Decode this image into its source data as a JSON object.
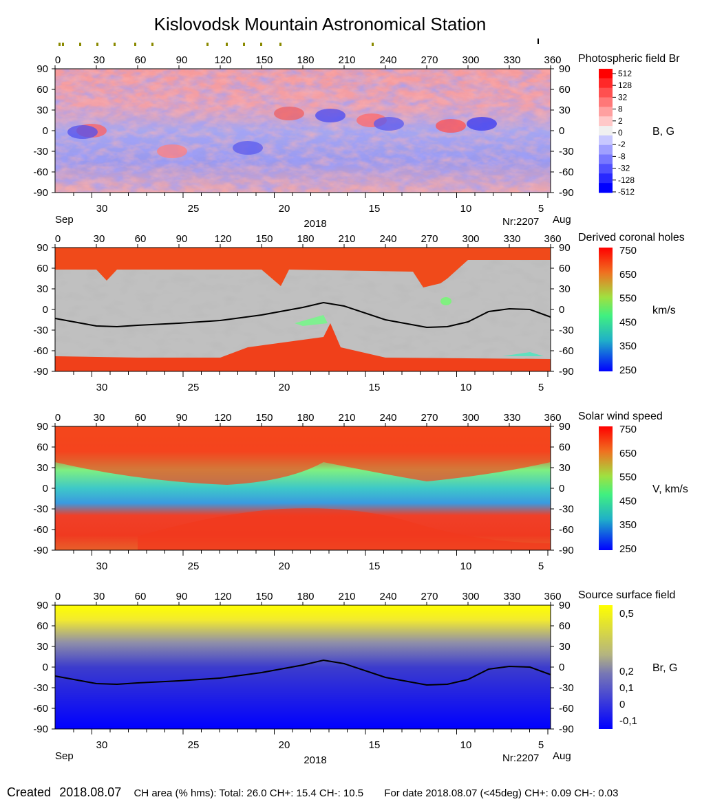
{
  "title": "Kislovodsk Mountain Astronomical Station",
  "footer": {
    "created_label": "Created",
    "created_date": "2018.08.07",
    "ch_area": "CH area (% hms): Total: 26.0 CH+: 15.4   CH-: 10.5",
    "for_date": "For date 2018.08.07 (<45deg) CH+: 0.09    CH-: 0.03"
  },
  "colors": {
    "red": "#ff2a1a",
    "blue": "#0000ff",
    "yellow": "#ffff00",
    "grey_light": "#c0c0c0",
    "grey_dark": "#808080"
  },
  "chart_data": [
    {
      "type": "heatmap",
      "title": "Photospheric field Br",
      "unit_label": "B, G",
      "x_ticks": [
        0,
        30,
        60,
        90,
        120,
        150,
        180,
        210,
        240,
        270,
        300,
        330,
        360
      ],
      "ylim": [
        -90,
        90
      ],
      "y_ticks": [
        90,
        60,
        30,
        0,
        -30,
        -60,
        -90
      ],
      "date_ticks": [
        "30",
        "25",
        "20",
        "15",
        "10",
        "5"
      ],
      "month_left": "Sep",
      "month_right": "Aug",
      "year": "2018",
      "rotation": "Nr:2207",
      "colorbar_labels": [
        "512",
        "128",
        "32",
        "8",
        "2",
        "0",
        "-2",
        "-8",
        "-32",
        "-128",
        "-512"
      ]
    },
    {
      "type": "heatmap",
      "title": "Derived coronal holes",
      "unit_label": "km/s",
      "x_ticks": [
        0,
        30,
        60,
        90,
        120,
        150,
        180,
        210,
        240,
        270,
        300,
        330,
        360
      ],
      "ylim": [
        -90,
        90
      ],
      "y_ticks": [
        90,
        60,
        30,
        0,
        -30,
        -60,
        -90
      ],
      "date_ticks": [
        "30",
        "25",
        "20",
        "15",
        "10",
        "5"
      ],
      "colorbar_labels": [
        "750",
        "650",
        "550",
        "450",
        "350",
        "250"
      ],
      "neutral_line": [
        [
          0,
          -13
        ],
        [
          30,
          -24
        ],
        [
          45,
          -25
        ],
        [
          60,
          -23
        ],
        [
          90,
          -20
        ],
        [
          120,
          -16
        ],
        [
          150,
          -8
        ],
        [
          180,
          3
        ],
        [
          195,
          10
        ],
        [
          210,
          5
        ],
        [
          240,
          -15
        ],
        [
          270,
          -26
        ],
        [
          285,
          -25
        ],
        [
          300,
          -18
        ],
        [
          315,
          -3
        ],
        [
          330,
          1
        ],
        [
          345,
          0
        ],
        [
          360,
          -11
        ]
      ]
    },
    {
      "type": "heatmap",
      "title": "Solar wind speed",
      "unit_label": "V, km/s",
      "x_ticks": [
        0,
        30,
        60,
        90,
        120,
        150,
        180,
        210,
        240,
        270,
        300,
        330,
        360
      ],
      "ylim": [
        -90,
        90
      ],
      "y_ticks": [
        90,
        60,
        30,
        0,
        -30,
        -60,
        -90
      ],
      "date_ticks": [
        "30",
        "25",
        "20",
        "15",
        "10",
        "5"
      ],
      "colorbar_labels": [
        "750",
        "650",
        "550",
        "450",
        "350",
        "250"
      ]
    },
    {
      "type": "heatmap",
      "title": "Source surface field",
      "unit_label": "Br, G",
      "x_ticks": [
        0,
        30,
        60,
        90,
        120,
        150,
        180,
        210,
        240,
        270,
        300,
        330,
        360
      ],
      "ylim": [
        -90,
        90
      ],
      "y_ticks": [
        90,
        60,
        30,
        0,
        -30,
        -60,
        -90
      ],
      "date_ticks": [
        "30",
        "25",
        "20",
        "15",
        "10",
        "5"
      ],
      "month_left": "Sep",
      "month_right": "Aug",
      "year": "2018",
      "rotation": "Nr:2207",
      "colorbar_labels": [
        "0,5",
        "0,2",
        "0,1",
        "0",
        "-0,1"
      ],
      "colorbar_label_levels": [
        0.55,
        0.2,
        0.1,
        0,
        -0.1
      ],
      "colorbar_range": [
        -0.15,
        0.6
      ],
      "neutral_line": [
        [
          0,
          -13
        ],
        [
          30,
          -24
        ],
        [
          45,
          -25
        ],
        [
          60,
          -23
        ],
        [
          90,
          -20
        ],
        [
          120,
          -16
        ],
        [
          150,
          -8
        ],
        [
          180,
          3
        ],
        [
          195,
          10
        ],
        [
          210,
          5
        ],
        [
          240,
          -15
        ],
        [
          270,
          -26
        ],
        [
          285,
          -25
        ],
        [
          300,
          -18
        ],
        [
          315,
          -3
        ],
        [
          330,
          1
        ],
        [
          345,
          0
        ],
        [
          360,
          -11
        ]
      ]
    }
  ]
}
